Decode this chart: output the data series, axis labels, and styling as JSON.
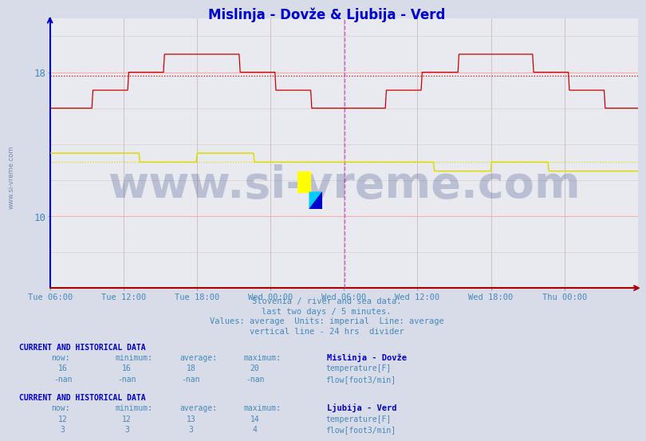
{
  "title": "Mislinja - Dovže & Ljubija - Verd",
  "title_color": "#0000cc",
  "bg_color": "#d8dce8",
  "plot_bg_color": "#e8eaf0",
  "grid_h_major_color": "#ffaaaa",
  "grid_h_minor_color": "#ddcccc",
  "grid_v_color": "#ccbbbb",
  "tick_color": "#4488bb",
  "watermark": "www.si-vreme.com",
  "watermark_color": "#1a2a6c",
  "watermark_alpha": 0.22,
  "subtitle_lines": [
    "Slovenia / river and sea data.",
    "last two days / 5 minutes.",
    "Values: average  Units: imperial  Line: average",
    "vertical line - 24 hrs  divider"
  ],
  "subtitle_color": "#4488bb",
  "ymin": 6.0,
  "ymax": 21.0,
  "yticks": [
    10,
    18
  ],
  "n_points": 576,
  "avg_mislinja_temp": 17.8,
  "avg_ljubija_temp": 13.0,
  "avg_ljubija_flow": 3.5,
  "x_tick_labels": [
    "Tue 06:00",
    "Tue 12:00",
    "Tue 18:00",
    "Wed 00:00",
    "Wed 06:00",
    "Wed 12:00",
    "Wed 18:00",
    "Thu 00:00"
  ],
  "legend_block1_title": "Mislinja - Dovže",
  "legend_block2_title": "Ljubija - Verd",
  "legend_block1": [
    {
      "now": "16",
      "min": "16",
      "avg": "18",
      "max": "20",
      "color": "#cc0000",
      "label": "temperature[F]"
    },
    {
      "now": "-nan",
      "min": "-nan",
      "avg": "-nan",
      "max": "-nan",
      "color": "#00aa00",
      "label": "flow[foot3/min]"
    }
  ],
  "legend_block2": [
    {
      "now": "12",
      "min": "12",
      "avg": "13",
      "max": "14",
      "color": "#dddd00",
      "label": "temperature[F]"
    },
    {
      "now": "3",
      "min": "3",
      "avg": "3",
      "max": "4",
      "color": "#dd44dd",
      "label": "flow[foot3/min]"
    }
  ],
  "left_label": "www.si-vreme.com",
  "left_label_color": "#7788aa",
  "mislinja_color": "#cc0000",
  "ljubija_temp_color": "#dddd00",
  "ljubija_flow_color": "#dd44dd",
  "vline_color": "#cc44cc",
  "spine_left_color": "#0000cc",
  "spine_bottom_color": "#aa0000"
}
